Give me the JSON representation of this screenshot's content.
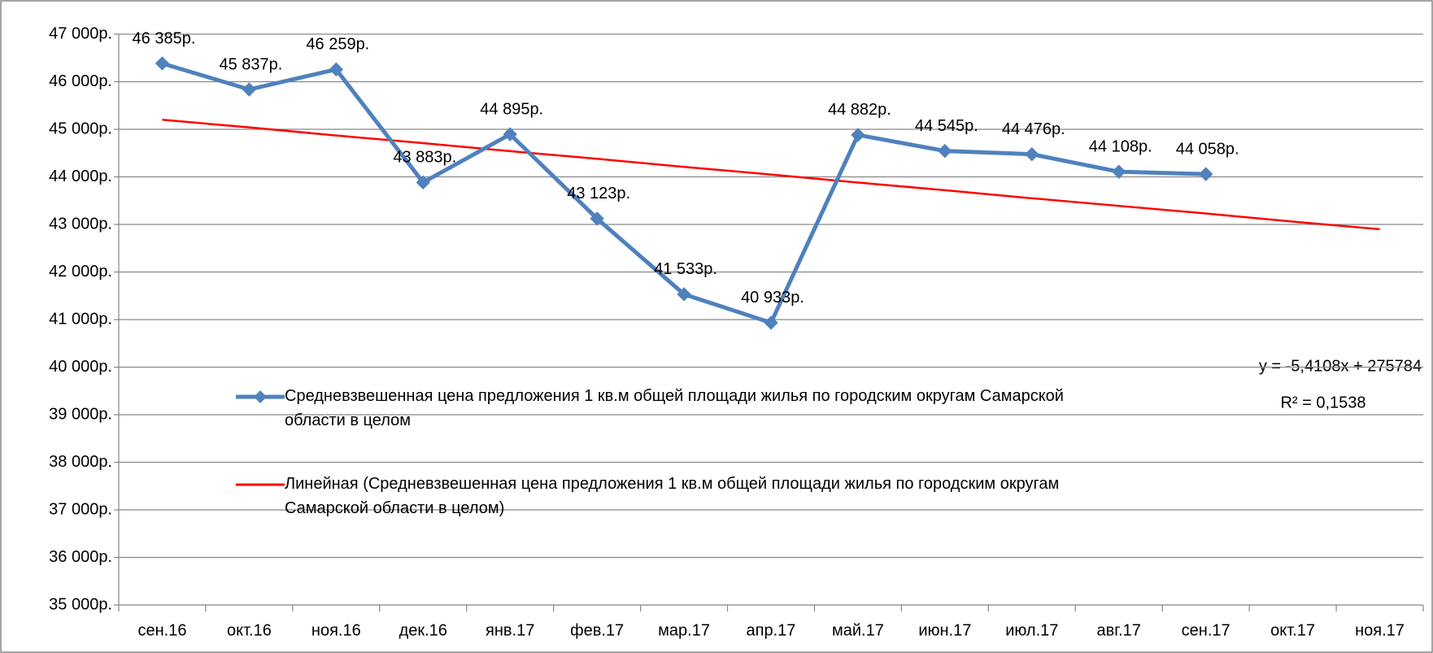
{
  "chart_data": {
    "type": "line",
    "categories": [
      "сен.16",
      "окт.16",
      "ноя.16",
      "дек.16",
      "янв.17",
      "фев.17",
      "мар.17",
      "апр.17",
      "май.17",
      "июн.17",
      "июл.17",
      "авг.17",
      "сен.17",
      "окт.17",
      "ноя.17"
    ],
    "series": [
      {
        "name": "Средневзвешенная цена предложения 1 кв.м общей площади жилья по городским округам Самарской области в целом",
        "color": "#4f81bd",
        "marker": "diamond",
        "values": [
          46385,
          45837,
          46259,
          43883,
          44895,
          43123,
          41533,
          40933,
          44882,
          44545,
          44476,
          44108,
          44058,
          null,
          null
        ],
        "value_labels": [
          "46 385р.",
          "45 837р.",
          "46 259р.",
          "43 883р.",
          "44 895р.",
          "43 123р.",
          "41 533р.",
          "40 933р.",
          "44 882р.",
          "44 545р.",
          "44 476р.",
          "44 108р.",
          "44 058р.",
          null,
          null
        ]
      },
      {
        "name": "Линейная (Средневзвешенная цена предложения 1 кв.м общей площади жилья по городским округам Самарской области в целом)",
        "color": "#ff0000",
        "values": [
          45200,
          45040,
          44870,
          44710,
          44540,
          44380,
          44210,
          44050,
          43880,
          43720,
          43550,
          43390,
          43230,
          43060,
          42900
        ]
      }
    ],
    "annotations": [
      "y = -5,4108x + 275784",
      "R² = 0,1538"
    ],
    "ylim": [
      35000,
      47000
    ],
    "yticks": [
      {
        "value": 35000,
        "label": "35 000р."
      },
      {
        "value": 36000,
        "label": "36 000р."
      },
      {
        "value": 37000,
        "label": "37 000р."
      },
      {
        "value": 38000,
        "label": "38 000р."
      },
      {
        "value": 39000,
        "label": "39 000р."
      },
      {
        "value": 40000,
        "label": "40 000р."
      },
      {
        "value": 41000,
        "label": "41 000р."
      },
      {
        "value": 42000,
        "label": "42 000р."
      },
      {
        "value": 43000,
        "label": "43 000р."
      },
      {
        "value": 44000,
        "label": "44 000р."
      },
      {
        "value": 45000,
        "label": "45 000р."
      },
      {
        "value": 46000,
        "label": "46 000р."
      },
      {
        "value": 47000,
        "label": "47 000р."
      }
    ],
    "grid": true
  }
}
